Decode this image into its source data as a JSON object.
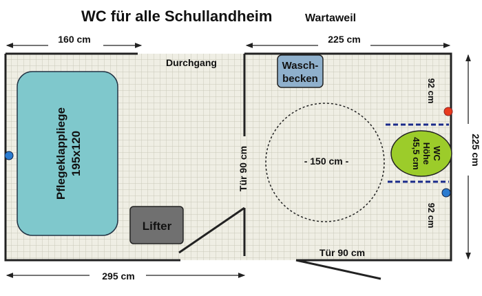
{
  "title": "WC für alle Schullandheim",
  "subtitle": "Wartaweil",
  "dimensions": {
    "top_left": "160 cm",
    "top_right": "225 cm",
    "right": "225 cm",
    "bottom": "295 cm",
    "right_upper": "92 cm",
    "right_lower": "92 cm"
  },
  "labels": {
    "passage": "Durchgang",
    "door_left": "Tür 90 cm",
    "door_bottom": "Tür 90 cm",
    "turning_circle": "- 150 cm -"
  },
  "objects": {
    "bed_line1": "Pflegeklappliege",
    "bed_line2": "195x120",
    "lifter": "Lifter",
    "sink_line1": "Wasch-",
    "sink_line2": "becken",
    "wc_line1": "WC",
    "wc_line2": "Höhe",
    "wc_line3": "45,5 cm"
  },
  "colors": {
    "bed": "#7fc8cc",
    "lifter": "#707070",
    "sink": "#8fb0cc",
    "wc": "#9ccc2a",
    "red_marker": "#e83a1e",
    "blue_marker": "#2a7bd0",
    "grab_bar": "#1a2a8a"
  }
}
